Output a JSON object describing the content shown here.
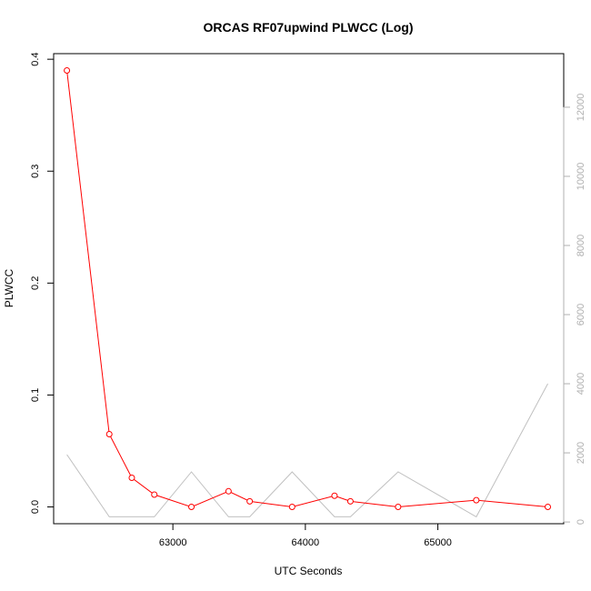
{
  "chart_data": {
    "type": "line",
    "title": "ORCAS RF07upwind PLWCC (Log)",
    "xlabel": "UTC Seconds",
    "ylabel": "PLWCC",
    "xlim": [
      62100,
      65950
    ],
    "ylim": [
      -0.015,
      0.405
    ],
    "y2lim": [
      -50,
      13550
    ],
    "x_ticks": [
      63000,
      64000,
      65000
    ],
    "x_tick_labels": [
      "63000",
      "64000",
      "65000"
    ],
    "y_ticks": [
      0.0,
      0.1,
      0.2,
      0.3,
      0.4
    ],
    "y_tick_labels": [
      "0.0",
      "0.1",
      "0.2",
      "0.3",
      "0.4"
    ],
    "y2_ticks": [
      0,
      2000,
      4000,
      6000,
      8000,
      10000,
      12000
    ],
    "y2_tick_labels": [
      "0",
      "2000",
      "4000",
      "6000",
      "8000",
      "10000",
      "12000"
    ],
    "grid": false,
    "series": [
      {
        "axis": "left",
        "color": "#ff0000",
        "marker": "circle",
        "x": [
          62200,
          62520,
          62690,
          62860,
          63140,
          63420,
          63580,
          63900,
          64220,
          64340,
          64700,
          65290,
          65830
        ],
        "y": [
          0.39,
          0.065,
          0.026,
          0.011,
          0.0,
          0.014,
          0.005,
          0.0,
          0.01,
          0.005,
          0.0,
          0.006,
          0.0
        ]
      },
      {
        "axis": "right",
        "color": "#c0c0c0",
        "marker": "none",
        "x": [
          62200,
          62520,
          62860,
          63140,
          63420,
          63580,
          63900,
          64220,
          64340,
          64700,
          65290,
          65830
        ],
        "y": [
          1950,
          150,
          150,
          1450,
          150,
          150,
          1450,
          150,
          150,
          1450,
          150,
          4000
        ]
      }
    ]
  }
}
